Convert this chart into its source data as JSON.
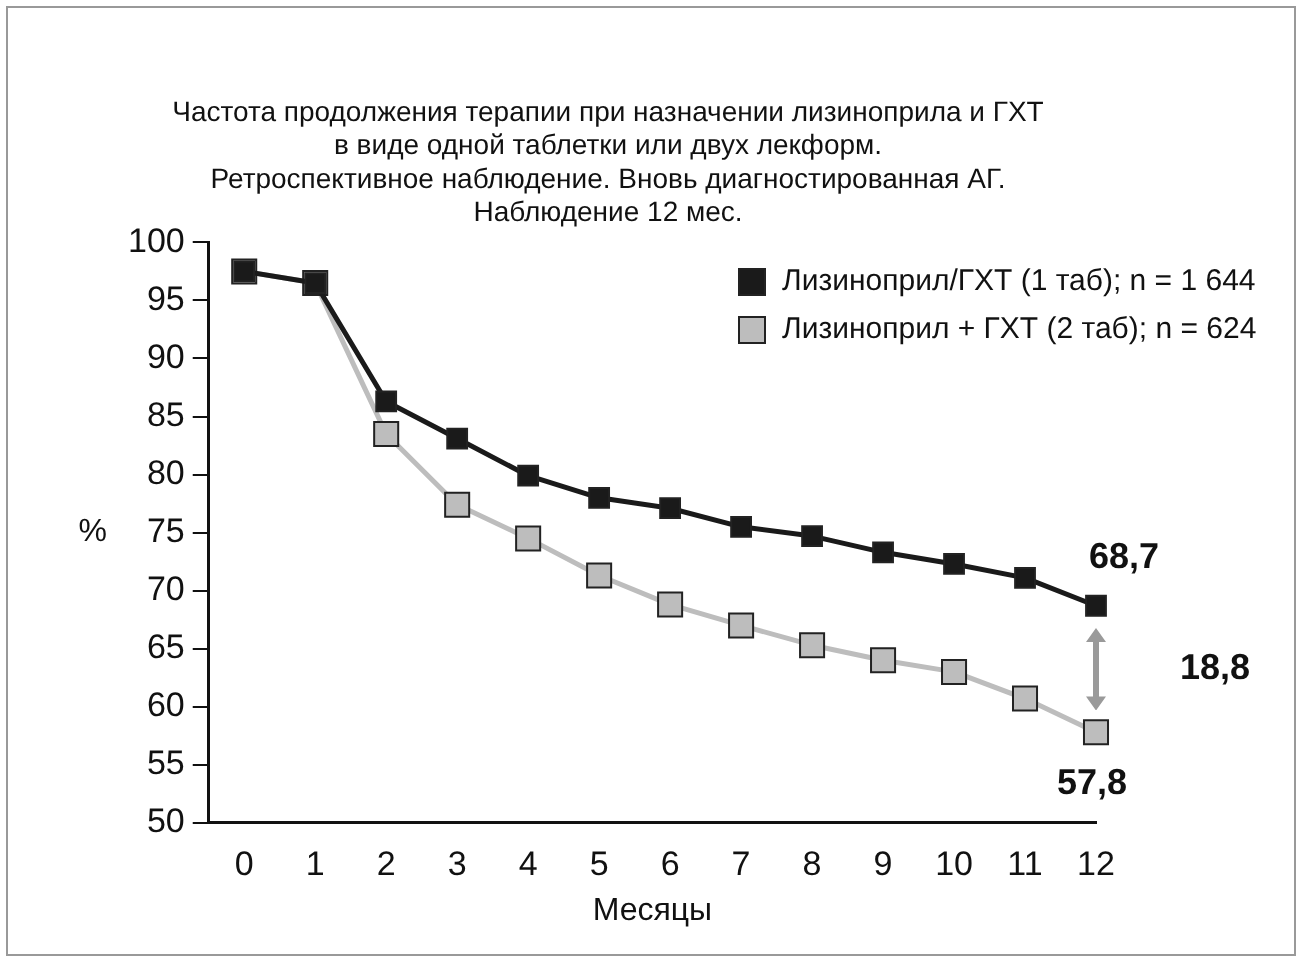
{
  "chart_data": {
    "type": "line",
    "title": "Частота продолжения терапии при назначении лизиноприла и ГХТ\nв виде одной таблетки или двух лекформ.\nРетроспективное наблюдение. Вновь диагностированная АГ.\nНаблюдение 12 мес.",
    "xlabel": "Месяцы",
    "ylabel": "%",
    "x": [
      0,
      1,
      2,
      3,
      4,
      5,
      6,
      7,
      8,
      9,
      10,
      11,
      12
    ],
    "series": [
      {
        "name": "Лизиноприл/ГХТ (1 таб); n = 1 644",
        "color": "#1a1a1a",
        "values": [
          97.5,
          96.5,
          86.3,
          83.1,
          79.9,
          78,
          77.1,
          75.5,
          74.7,
          73.3,
          72.3,
          71.1,
          68.7
        ]
      },
      {
        "name": "Лизиноприл + ГХТ (2 таб); n = 624",
        "color": "#bdbdbd",
        "values": [
          97.5,
          96.5,
          83.5,
          77.4,
          74.5,
          71.3,
          68.8,
          67,
          65.3,
          64,
          63,
          60.7,
          57.8
        ]
      }
    ],
    "xlim": [
      -0.5,
      12
    ],
    "xticks": [
      0,
      1,
      2,
      3,
      4,
      5,
      6,
      7,
      8,
      9,
      10,
      11,
      12
    ],
    "ylim": [
      50,
      100
    ],
    "yticks": [
      50,
      55,
      60,
      65,
      70,
      75,
      80,
      85,
      90,
      95,
      100
    ],
    "grid": false,
    "legend": "top right",
    "marker": "square",
    "line_style": "solid",
    "annotations": [
      {
        "text": "68,7",
        "x": 12,
        "y": 68.7
      },
      {
        "text": "57,8",
        "x": 12,
        "y": 57.8
      },
      "18,8"
    ]
  }
}
